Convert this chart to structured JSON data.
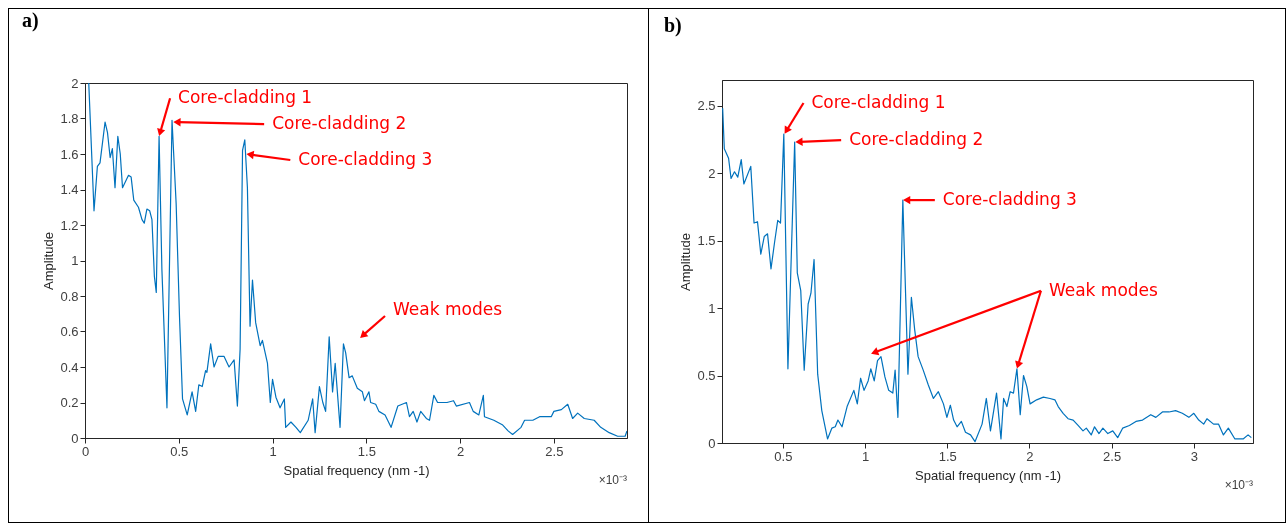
{
  "chart_data": [
    {
      "type": "line",
      "title": "a)",
      "xlabel": "Spatial frequency (nm -1)",
      "ylabel": "Amplitude",
      "color": "#0072bd",
      "xlim": [
        0,
        2.89
      ],
      "ylim": [
        0,
        2
      ],
      "xticks": [
        0,
        0.5,
        1,
        1.5,
        2,
        2.5
      ],
      "yticks": [
        0,
        0.2,
        0.4,
        0.6,
        0.8,
        1,
        1.2,
        1.4,
        1.6,
        1.8,
        2
      ],
      "x": [
        0.02,
        0.048,
        0.066,
        0.08,
        0.107,
        0.12,
        0.134,
        0.146,
        0.16,
        0.175,
        0.188,
        0.2,
        0.232,
        0.246,
        0.26,
        0.285,
        0.304,
        0.316,
        0.33,
        0.345,
        0.357,
        0.37,
        0.38,
        0.395,
        0.41,
        0.437,
        0.464,
        0.486,
        0.504,
        0.52,
        0.545,
        0.571,
        0.59,
        0.607,
        0.625,
        0.643,
        0.65,
        0.67,
        0.688,
        0.71,
        0.741,
        0.768,
        0.795,
        0.8125,
        0.827,
        0.84,
        0.852,
        0.866,
        0.88,
        0.893,
        0.91,
        0.934,
        0.946,
        0.973,
        0.988,
        1.0,
        1.018,
        1.04,
        1.063,
        1.07,
        1.098,
        1.125,
        1.148,
        1.19,
        1.214,
        1.227,
        1.25,
        1.268,
        1.283,
        1.302,
        1.32,
        1.334,
        1.36,
        1.378,
        1.39,
        1.408,
        1.425,
        1.452,
        1.479,
        1.49,
        1.514,
        1.523,
        1.55,
        1.567,
        1.6,
        1.632,
        1.668,
        1.714,
        1.73,
        1.75,
        1.77,
        1.79,
        1.82,
        1.837,
        1.86,
        1.88,
        1.93,
        1.965,
        1.98,
        2.05,
        2.07,
        2.1,
        2.124,
        2.13,
        2.18,
        2.225,
        2.256,
        2.28,
        2.325,
        2.344,
        2.388,
        2.424,
        2.486,
        2.5,
        2.54,
        2.574,
        2.6,
        2.627,
        2.662,
        2.715,
        2.75,
        2.795,
        2.84,
        2.88,
        2.89
      ],
      "values": [
        2.0,
        1.28,
        1.53,
        1.55,
        1.78,
        1.72,
        1.58,
        1.63,
        1.41,
        1.7,
        1.6,
        1.41,
        1.48,
        1.47,
        1.34,
        1.3,
        1.23,
        1.21,
        1.29,
        1.28,
        1.23,
        0.91,
        0.82,
        1.7,
        0.95,
        0.17,
        1.79,
        1.32,
        0.68,
        0.22,
        0.13,
        0.26,
        0.15,
        0.3,
        0.29,
        0.38,
        0.37,
        0.53,
        0.4,
        0.46,
        0.46,
        0.4,
        0.44,
        0.18,
        0.5,
        1.62,
        1.68,
        1.41,
        0.63,
        0.89,
        0.65,
        0.52,
        0.55,
        0.42,
        0.2,
        0.33,
        0.23,
        0.17,
        0.22,
        0.06,
        0.09,
        0.06,
        0.03,
        0.1,
        0.22,
        0.03,
        0.29,
        0.2,
        0.15,
        0.57,
        0.26,
        0.42,
        0.06,
        0.53,
        0.48,
        0.34,
        0.35,
        0.28,
        0.26,
        0.21,
        0.26,
        0.2,
        0.19,
        0.15,
        0.13,
        0.06,
        0.18,
        0.2,
        0.12,
        0.15,
        0.09,
        0.15,
        0.11,
        0.1,
        0.24,
        0.2,
        0.2,
        0.21,
        0.18,
        0.2,
        0.15,
        0.13,
        0.24,
        0.12,
        0.1,
        0.075,
        0.04,
        0.02,
        0.06,
        0.1,
        0.1,
        0.12,
        0.12,
        0.15,
        0.16,
        0.19,
        0.11,
        0.14,
        0.11,
        0.1,
        0.06,
        0.03,
        0.01,
        0.01,
        0.04
      ],
      "annotations": [
        {
          "text": "Core-cladding 1",
          "x": 0.395,
          "y": 1.7
        },
        {
          "text": "Core-cladding 2",
          "x": 0.47,
          "y": 1.78
        },
        {
          "text": "Core-cladding 3",
          "x": 0.86,
          "y": 1.6
        },
        "Weak modes",
        "×10⁻³"
      ]
    },
    {
      "type": "line",
      "title": "b)",
      "xlabel": "Spatial frequency (nm -1)",
      "ylabel": "Amplitude",
      "color": "#0072bd",
      "xlim": [
        0.13,
        3.36
      ],
      "ylim": [
        0,
        2.69
      ],
      "xticks": [
        0.5,
        1,
        1.5,
        2,
        2.5,
        3
      ],
      "yticks": [
        0,
        0.5,
        1,
        1.5,
        2,
        2.5
      ],
      "x": [
        0.134,
        0.144,
        0.17,
        0.185,
        0.206,
        0.226,
        0.247,
        0.263,
        0.305,
        0.325,
        0.346,
        0.366,
        0.387,
        0.407,
        0.428,
        0.449,
        0.469,
        0.486,
        0.506,
        0.531,
        0.572,
        0.588,
        0.609,
        0.63,
        0.654,
        0.671,
        0.69,
        0.712,
        0.737,
        0.772,
        0.798,
        0.819,
        0.835,
        0.86,
        0.891,
        0.932,
        0.953,
        0.973,
        0.994,
        1.019,
        1.035,
        1.056,
        1.076,
        1.097,
        1.121,
        1.144,
        1.169,
        1.183,
        1.2,
        1.23,
        1.261,
        1.282,
        1.302,
        1.323,
        1.354,
        1.385,
        1.416,
        1.446,
        1.477,
        1.498,
        1.519,
        1.539,
        1.56,
        1.586,
        1.611,
        1.642,
        1.669,
        1.712,
        1.738,
        1.763,
        1.8,
        1.827,
        1.843,
        1.863,
        1.883,
        1.903,
        1.924,
        1.944,
        1.964,
        1.984,
        2.004,
        2.044,
        2.085,
        2.125,
        2.155,
        2.175,
        2.205,
        2.235,
        2.266,
        2.296,
        2.326,
        2.346,
        2.376,
        2.396,
        2.423,
        2.447,
        2.477,
        2.507,
        2.537,
        2.567,
        2.608,
        2.648,
        2.688,
        2.738,
        2.769,
        2.809,
        2.849,
        2.889,
        2.93,
        2.97,
        3.0,
        3.03,
        3.06,
        3.08,
        3.12,
        3.15,
        3.18,
        3.21,
        3.25,
        3.3,
        3.33,
        3.35
      ],
      "values": [
        2.48,
        2.18,
        2.11,
        1.96,
        2.01,
        1.97,
        2.1,
        1.92,
        2.05,
        1.63,
        1.64,
        1.4,
        1.53,
        1.55,
        1.29,
        1.48,
        1.65,
        1.63,
        2.29,
        0.55,
        2.23,
        1.26,
        1.13,
        0.54,
        1.03,
        1.11,
        1.36,
        0.51,
        0.24,
        0.03,
        0.11,
        0.12,
        0.17,
        0.12,
        0.27,
        0.39,
        0.29,
        0.48,
        0.39,
        0.46,
        0.55,
        0.46,
        0.61,
        0.64,
        0.49,
        0.39,
        0.37,
        0.54,
        0.19,
        1.8,
        0.51,
        1.08,
        0.84,
        0.64,
        0.54,
        0.43,
        0.33,
        0.38,
        0.29,
        0.19,
        0.28,
        0.17,
        0.12,
        0.16,
        0.08,
        0.06,
        0.01,
        0.14,
        0.33,
        0.09,
        0.37,
        0.03,
        0.33,
        0.27,
        0.38,
        0.37,
        0.55,
        0.21,
        0.5,
        0.42,
        0.29,
        0.32,
        0.34,
        0.33,
        0.32,
        0.27,
        0.22,
        0.18,
        0.17,
        0.13,
        0.09,
        0.11,
        0.06,
        0.12,
        0.07,
        0.11,
        0.07,
        0.09,
        0.04,
        0.11,
        0.13,
        0.16,
        0.17,
        0.21,
        0.19,
        0.23,
        0.23,
        0.24,
        0.22,
        0.19,
        0.22,
        0.17,
        0.14,
        0.18,
        0.14,
        0.14,
        0.06,
        0.11,
        0.03,
        0.03,
        0.06,
        0.04
      ],
      "annotations": [
        {
          "text": "Core-cladding 1",
          "x": 0.51,
          "y": 2.29
        },
        {
          "text": "Core-cladding 2",
          "x": 0.575,
          "y": 2.23
        },
        {
          "text": "Core-cladding 3",
          "x": 1.23,
          "y": 1.8
        },
        {
          "text": "Weak modes",
          "x": 1.924,
          "y": 0.55
        },
        "×10⁻³"
      ]
    }
  ]
}
